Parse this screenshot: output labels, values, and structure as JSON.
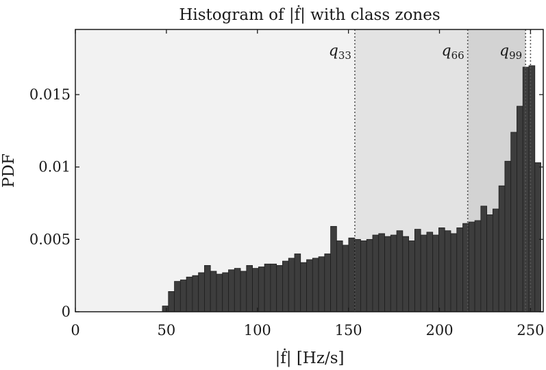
{
  "chart_data": {
    "type": "bar",
    "title": "Histogram of |ḟ| with class zones",
    "xlabel": "|ḟ| [Hz/s]",
    "ylabel": "PDF",
    "xlim": [
      0,
      257
    ],
    "ylim": [
      0,
      0.0195
    ],
    "x_ticks": [
      "0",
      "50",
      "100",
      "150",
      "200",
      "250"
    ],
    "y_ticks": [
      "0",
      "0.005",
      "0.01",
      "0.015"
    ],
    "bin_width": 3.3,
    "bin_start": 47.8,
    "values": [
      0.0004,
      0.0014,
      0.0021,
      0.0022,
      0.0024,
      0.0025,
      0.0027,
      0.0032,
      0.0028,
      0.0026,
      0.0027,
      0.0029,
      0.003,
      0.0028,
      0.0032,
      0.003,
      0.0031,
      0.0033,
      0.0033,
      0.0032,
      0.0035,
      0.0037,
      0.004,
      0.0034,
      0.0036,
      0.0037,
      0.0038,
      0.004,
      0.0059,
      0.0049,
      0.0046,
      0.0051,
      0.005,
      0.0049,
      0.005,
      0.0053,
      0.0054,
      0.0052,
      0.0053,
      0.0056,
      0.0052,
      0.0049,
      0.0057,
      0.0053,
      0.0055,
      0.0053,
      0.0058,
      0.0056,
      0.0054,
      0.0058,
      0.0061,
      0.0062,
      0.0063,
      0.0073,
      0.0067,
      0.0071,
      0.0087,
      0.0104,
      0.0124,
      0.0142,
      0.0169,
      0.017,
      0.0103
    ],
    "zones": [
      {
        "from": 0,
        "to": 153.5,
        "color": "#f2f2f2"
      },
      {
        "from": 153.5,
        "to": 215.5,
        "color": "#e3e3e3"
      },
      {
        "from": 215.5,
        "to": 247.3,
        "color": "#d3d3d3"
      },
      {
        "from": 247.3,
        "to": 257,
        "color": "#ffffff"
      }
    ],
    "quantile_lines": [
      {
        "x": 153.5,
        "label": "q",
        "sub": "33"
      },
      {
        "x": 215.5,
        "label": "q",
        "sub": "66"
      },
      {
        "x": 247.3,
        "label": "q",
        "sub": "99"
      }
    ],
    "extra_vline_x": 250.0,
    "bar_color": "#3d3d3d",
    "grid": false
  }
}
